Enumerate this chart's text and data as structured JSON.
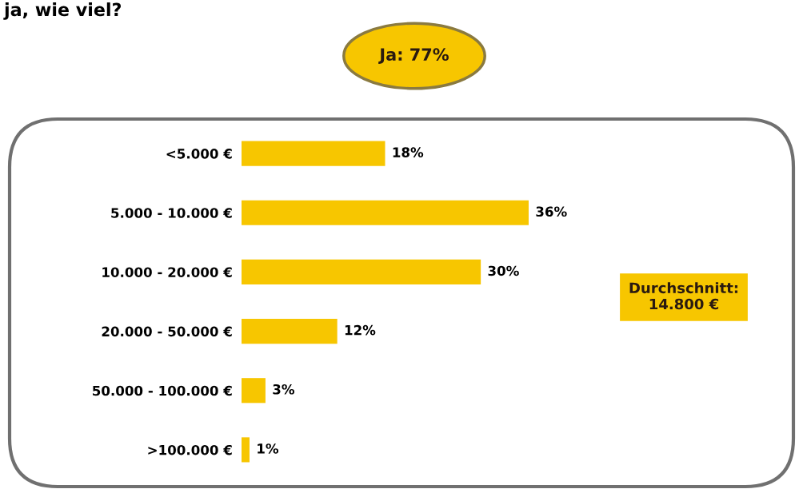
{
  "chart_data": {
    "type": "bar",
    "orientation": "horizontal",
    "title": "ja, wie viel?",
    "categories": [
      "<5.000 €",
      "5.000 - 10.000 €",
      "10.000 - 20.000 €",
      "20.000 - 50.000 €",
      "50.000 - 100.000 €",
      ">100.000 €"
    ],
    "values": [
      18,
      36,
      30,
      12,
      3,
      1
    ],
    "value_labels": [
      "18%",
      "36%",
      "30%",
      "12%",
      "3%",
      "1%"
    ],
    "color": "#f7c600",
    "annotations": [
      "Ja: 77%",
      "Durchschnitt:\n14.800 €"
    ]
  }
}
